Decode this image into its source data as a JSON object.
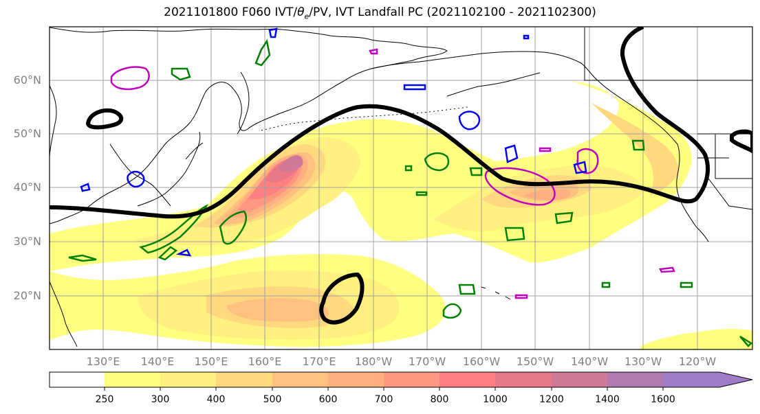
{
  "title": {
    "prefix": "2021101800 F060 IVT/",
    "theta": "θ",
    "theta_sub": "e",
    "suffix": "/PV, IVT Landfall PC (2021102100 - 2021102300)"
  },
  "map": {
    "lat_labels": [
      "60°N",
      "50°N",
      "40°N",
      "30°N",
      "20°N"
    ],
    "lon_labels": [
      "130°E",
      "140°E",
      "150°E",
      "160°E",
      "170°E",
      "180°W",
      "170°W",
      "160°W",
      "150°W",
      "140°W",
      "130°W",
      "120°W"
    ],
    "grid_color": "#a0a0a0",
    "contour_colors": {
      "ivt_landfall_pc": "#000000",
      "theta_e_low": "#008000",
      "theta_e_high": "#0000ff",
      "pv": "#c000c0"
    }
  },
  "colorbar": {
    "ticks": [
      "250",
      "300",
      "400",
      "500",
      "600",
      "700",
      "800",
      "1000",
      "1200",
      "1400",
      "1600"
    ],
    "colors": [
      "#ffffff",
      "#ffff80",
      "#fff080",
      "#ffd880",
      "#ffc080",
      "#ffb080",
      "#ff9880",
      "#ff8080",
      "#e87888",
      "#d07898",
      "#b07ab0",
      "#a07cc8"
    ]
  }
}
